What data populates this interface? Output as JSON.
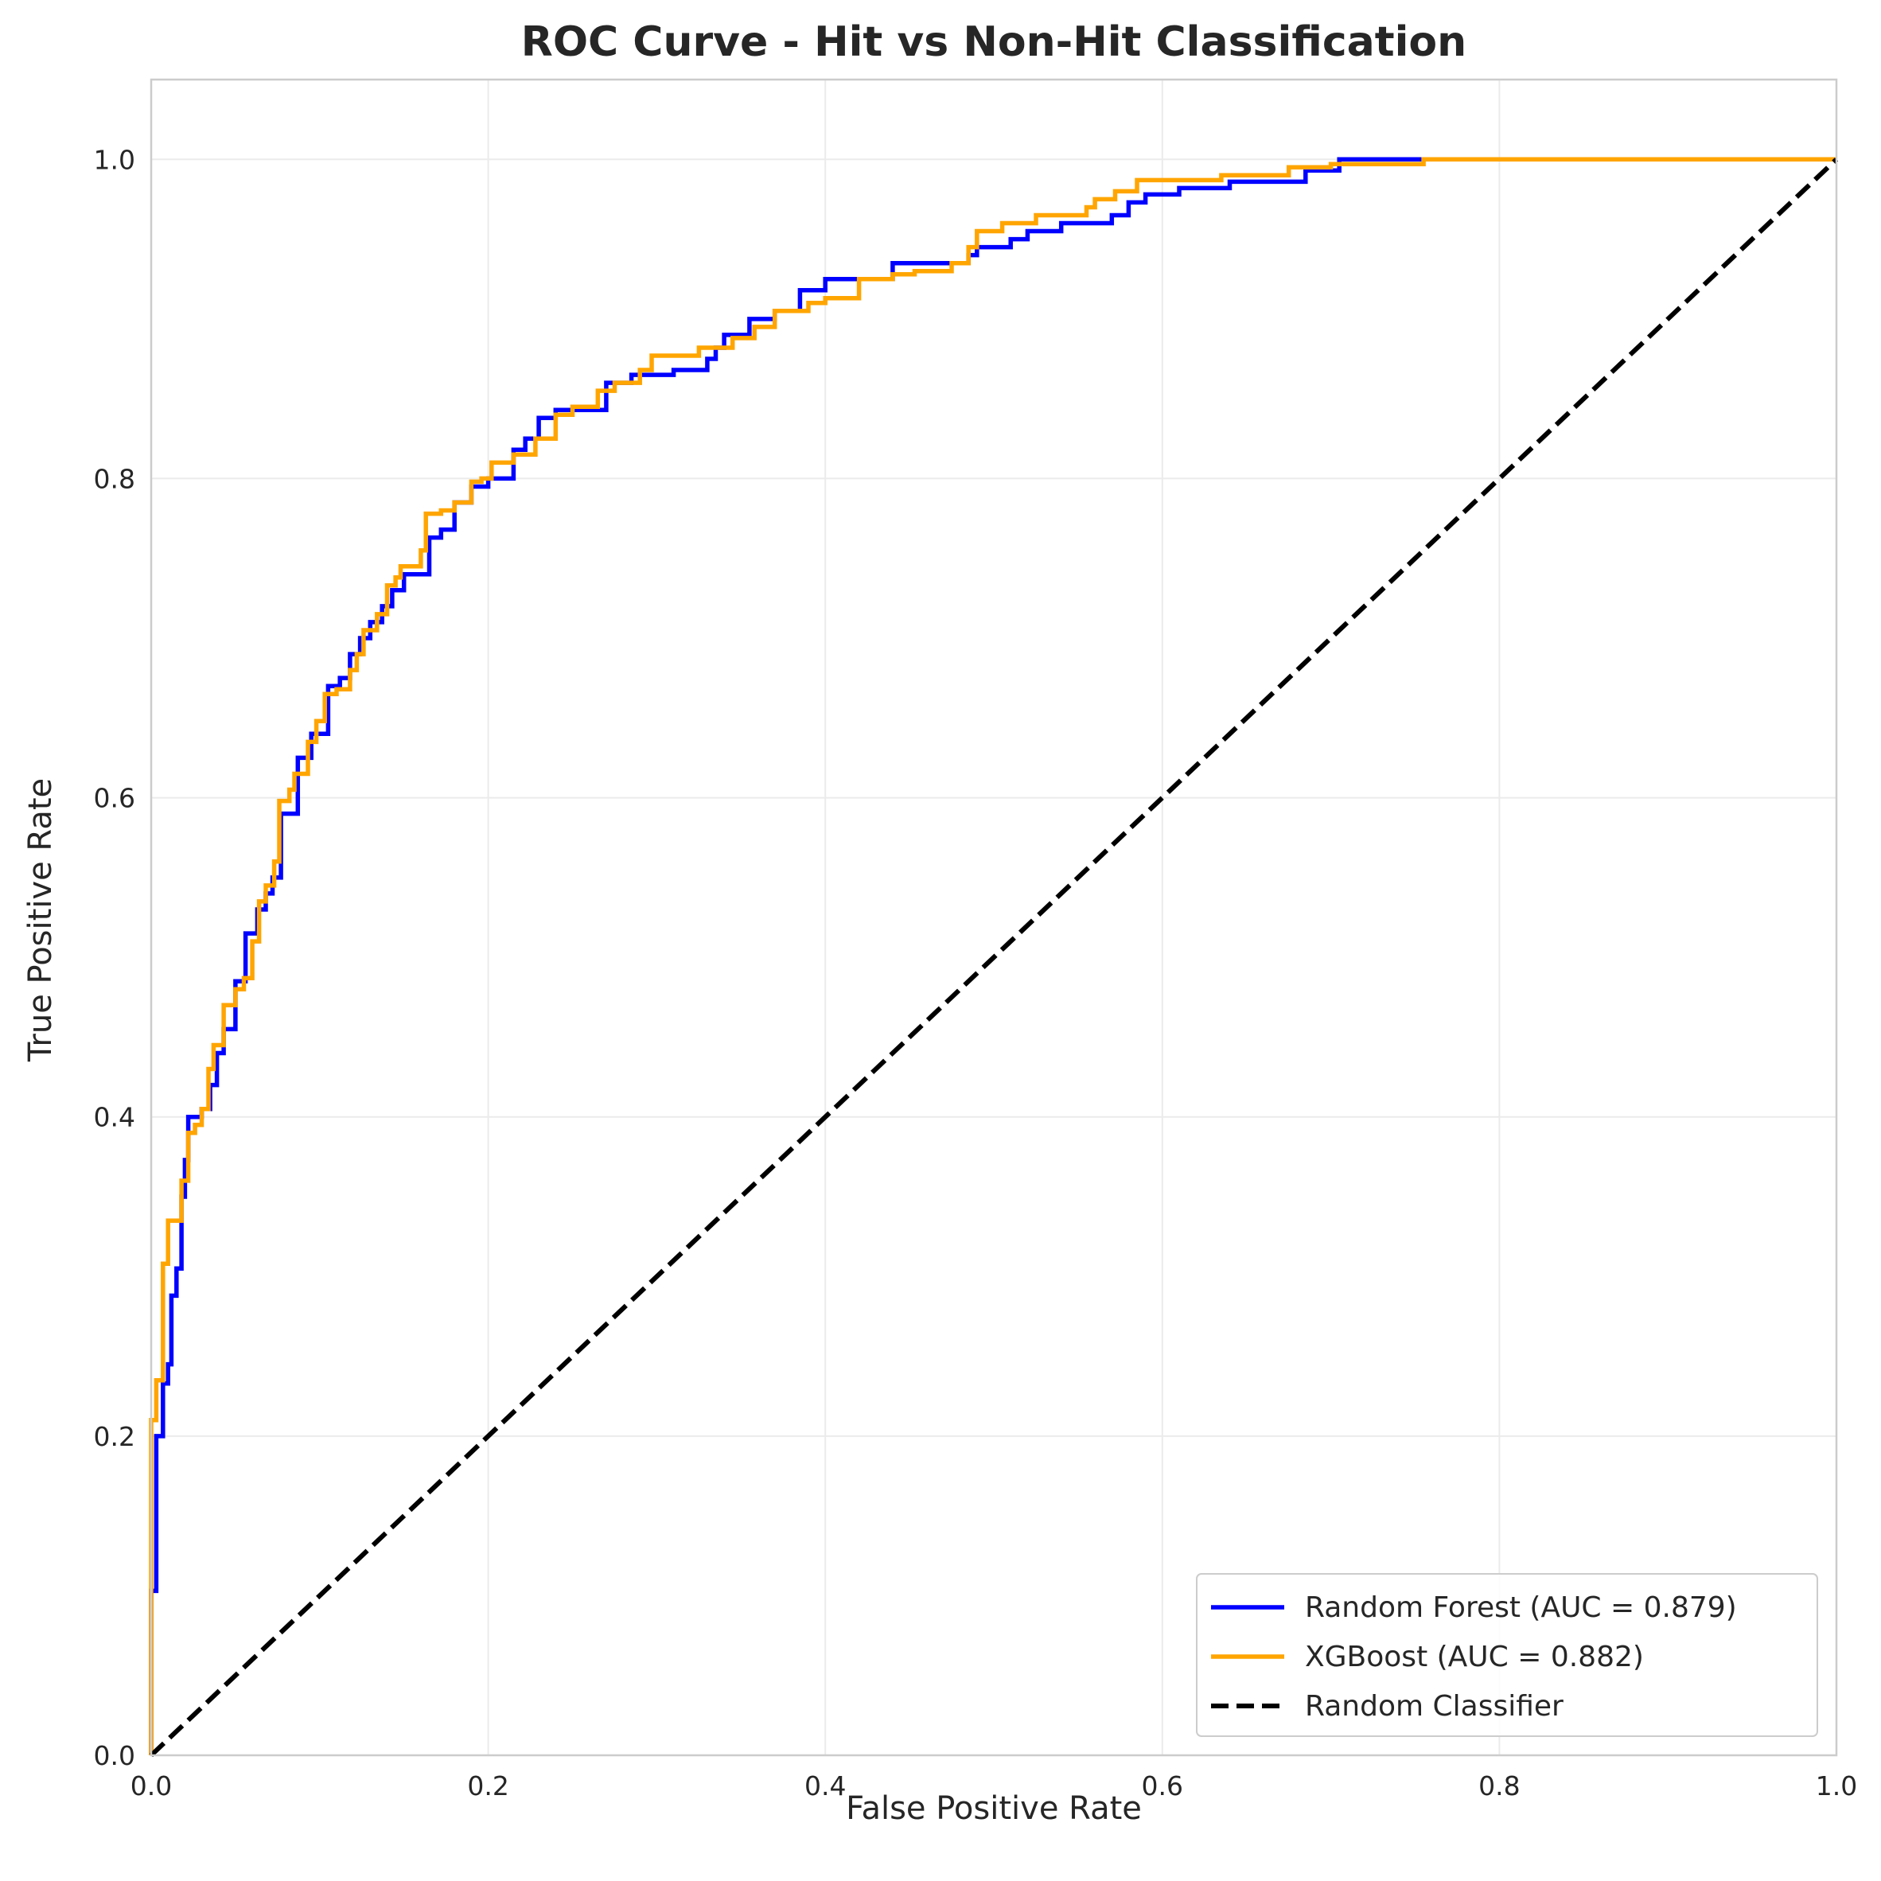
{
  "chart_data": {
    "type": "line",
    "title": "ROC Curve - Hit vs Non-Hit Classification",
    "xlabel": "False Positive Rate",
    "ylabel": "True Positive Rate",
    "xlim": [
      0.0,
      1.0
    ],
    "ylim": [
      0.0,
      1.05
    ],
    "x_ticks": [
      "0.0",
      "0.2",
      "0.4",
      "0.6",
      "0.8",
      "1.0"
    ],
    "y_ticks": [
      "0.0",
      "0.2",
      "0.4",
      "0.6",
      "0.8",
      "1.0"
    ],
    "grid": true,
    "legend_position": "bottom-right",
    "series": [
      {
        "name": "Random Forest (AUC = 0.879)",
        "color": "#0000ff",
        "style": "solid",
        "points": [
          [
            0.0,
            0.0
          ],
          [
            0.0,
            0.103
          ],
          [
            0.003,
            0.103
          ],
          [
            0.003,
            0.2
          ],
          [
            0.007,
            0.2
          ],
          [
            0.007,
            0.233
          ],
          [
            0.01,
            0.233
          ],
          [
            0.01,
            0.245
          ],
          [
            0.012,
            0.245
          ],
          [
            0.012,
            0.288
          ],
          [
            0.015,
            0.288
          ],
          [
            0.015,
            0.305
          ],
          [
            0.018,
            0.305
          ],
          [
            0.018,
            0.35
          ],
          [
            0.02,
            0.35
          ],
          [
            0.02,
            0.373
          ],
          [
            0.022,
            0.373
          ],
          [
            0.022,
            0.4
          ],
          [
            0.03,
            0.4
          ],
          [
            0.03,
            0.405
          ],
          [
            0.035,
            0.405
          ],
          [
            0.035,
            0.42
          ],
          [
            0.039,
            0.42
          ],
          [
            0.039,
            0.44
          ],
          [
            0.043,
            0.44
          ],
          [
            0.043,
            0.455
          ],
          [
            0.05,
            0.455
          ],
          [
            0.05,
            0.485
          ],
          [
            0.056,
            0.485
          ],
          [
            0.056,
            0.515
          ],
          [
            0.063,
            0.515
          ],
          [
            0.063,
            0.53
          ],
          [
            0.068,
            0.53
          ],
          [
            0.068,
            0.54
          ],
          [
            0.072,
            0.54
          ],
          [
            0.072,
            0.55
          ],
          [
            0.077,
            0.55
          ],
          [
            0.077,
            0.59
          ],
          [
            0.087,
            0.59
          ],
          [
            0.087,
            0.625
          ],
          [
            0.095,
            0.625
          ],
          [
            0.095,
            0.64
          ],
          [
            0.105,
            0.64
          ],
          [
            0.105,
            0.67
          ],
          [
            0.112,
            0.67
          ],
          [
            0.112,
            0.675
          ],
          [
            0.118,
            0.675
          ],
          [
            0.118,
            0.69
          ],
          [
            0.124,
            0.69
          ],
          [
            0.124,
            0.7
          ],
          [
            0.13,
            0.7
          ],
          [
            0.13,
            0.71
          ],
          [
            0.137,
            0.71
          ],
          [
            0.137,
            0.72
          ],
          [
            0.143,
            0.72
          ],
          [
            0.143,
            0.73
          ],
          [
            0.15,
            0.73
          ],
          [
            0.15,
            0.74
          ],
          [
            0.165,
            0.74
          ],
          [
            0.165,
            0.763
          ],
          [
            0.172,
            0.763
          ],
          [
            0.172,
            0.768
          ],
          [
            0.18,
            0.768
          ],
          [
            0.18,
            0.785
          ],
          [
            0.19,
            0.785
          ],
          [
            0.19,
            0.795
          ],
          [
            0.2,
            0.795
          ],
          [
            0.2,
            0.8
          ],
          [
            0.215,
            0.8
          ],
          [
            0.215,
            0.818
          ],
          [
            0.222,
            0.818
          ],
          [
            0.222,
            0.825
          ],
          [
            0.23,
            0.825
          ],
          [
            0.23,
            0.838
          ],
          [
            0.24,
            0.838
          ],
          [
            0.24,
            0.843
          ],
          [
            0.27,
            0.843
          ],
          [
            0.27,
            0.86
          ],
          [
            0.285,
            0.86
          ],
          [
            0.285,
            0.865
          ],
          [
            0.31,
            0.865
          ],
          [
            0.31,
            0.868
          ],
          [
            0.33,
            0.868
          ],
          [
            0.33,
            0.875
          ],
          [
            0.335,
            0.875
          ],
          [
            0.335,
            0.882
          ],
          [
            0.34,
            0.882
          ],
          [
            0.34,
            0.89
          ],
          [
            0.355,
            0.89
          ],
          [
            0.355,
            0.9
          ],
          [
            0.37,
            0.9
          ],
          [
            0.37,
            0.905
          ],
          [
            0.385,
            0.905
          ],
          [
            0.385,
            0.918
          ],
          [
            0.4,
            0.918
          ],
          [
            0.4,
            0.925
          ],
          [
            0.44,
            0.925
          ],
          [
            0.44,
            0.935
          ],
          [
            0.485,
            0.935
          ],
          [
            0.485,
            0.94
          ],
          [
            0.49,
            0.94
          ],
          [
            0.49,
            0.945
          ],
          [
            0.51,
            0.945
          ],
          [
            0.51,
            0.95
          ],
          [
            0.52,
            0.95
          ],
          [
            0.52,
            0.955
          ],
          [
            0.54,
            0.955
          ],
          [
            0.54,
            0.96
          ],
          [
            0.57,
            0.96
          ],
          [
            0.57,
            0.965
          ],
          [
            0.58,
            0.965
          ],
          [
            0.58,
            0.973
          ],
          [
            0.59,
            0.973
          ],
          [
            0.59,
            0.978
          ],
          [
            0.61,
            0.978
          ],
          [
            0.61,
            0.982
          ],
          [
            0.64,
            0.982
          ],
          [
            0.64,
            0.986
          ],
          [
            0.685,
            0.986
          ],
          [
            0.685,
            0.993
          ],
          [
            0.705,
            0.993
          ],
          [
            0.705,
            1.0
          ],
          [
            1.0,
            1.0
          ]
        ]
      },
      {
        "name": "XGBoost (AUC = 0.882)",
        "color": "#ffa500",
        "style": "solid",
        "points": [
          [
            0.0,
            0.0
          ],
          [
            0.0,
            0.21
          ],
          [
            0.003,
            0.21
          ],
          [
            0.003,
            0.235
          ],
          [
            0.007,
            0.235
          ],
          [
            0.007,
            0.308
          ],
          [
            0.01,
            0.308
          ],
          [
            0.01,
            0.335
          ],
          [
            0.018,
            0.335
          ],
          [
            0.018,
            0.36
          ],
          [
            0.022,
            0.36
          ],
          [
            0.022,
            0.39
          ],
          [
            0.026,
            0.39
          ],
          [
            0.026,
            0.395
          ],
          [
            0.03,
            0.395
          ],
          [
            0.03,
            0.405
          ],
          [
            0.034,
            0.405
          ],
          [
            0.034,
            0.43
          ],
          [
            0.037,
            0.43
          ],
          [
            0.037,
            0.445
          ],
          [
            0.043,
            0.445
          ],
          [
            0.043,
            0.47
          ],
          [
            0.05,
            0.47
          ],
          [
            0.05,
            0.48
          ],
          [
            0.055,
            0.48
          ],
          [
            0.055,
            0.487
          ],
          [
            0.06,
            0.487
          ],
          [
            0.06,
            0.51
          ],
          [
            0.064,
            0.51
          ],
          [
            0.064,
            0.535
          ],
          [
            0.068,
            0.535
          ],
          [
            0.068,
            0.545
          ],
          [
            0.073,
            0.545
          ],
          [
            0.073,
            0.56
          ],
          [
            0.076,
            0.56
          ],
          [
            0.076,
            0.598
          ],
          [
            0.082,
            0.598
          ],
          [
            0.082,
            0.605
          ],
          [
            0.085,
            0.605
          ],
          [
            0.085,
            0.615
          ],
          [
            0.093,
            0.615
          ],
          [
            0.093,
            0.635
          ],
          [
            0.098,
            0.635
          ],
          [
            0.098,
            0.648
          ],
          [
            0.103,
            0.648
          ],
          [
            0.103,
            0.665
          ],
          [
            0.11,
            0.665
          ],
          [
            0.11,
            0.668
          ],
          [
            0.118,
            0.668
          ],
          [
            0.118,
            0.68
          ],
          [
            0.122,
            0.68
          ],
          [
            0.122,
            0.69
          ],
          [
            0.126,
            0.69
          ],
          [
            0.126,
            0.705
          ],
          [
            0.134,
            0.705
          ],
          [
            0.134,
            0.715
          ],
          [
            0.14,
            0.715
          ],
          [
            0.14,
            0.733
          ],
          [
            0.145,
            0.733
          ],
          [
            0.145,
            0.738
          ],
          [
            0.148,
            0.738
          ],
          [
            0.148,
            0.745
          ],
          [
            0.16,
            0.745
          ],
          [
            0.16,
            0.755
          ],
          [
            0.163,
            0.755
          ],
          [
            0.163,
            0.778
          ],
          [
            0.172,
            0.778
          ],
          [
            0.172,
            0.78
          ],
          [
            0.18,
            0.78
          ],
          [
            0.18,
            0.785
          ],
          [
            0.19,
            0.785
          ],
          [
            0.19,
            0.798
          ],
          [
            0.196,
            0.798
          ],
          [
            0.196,
            0.8
          ],
          [
            0.202,
            0.8
          ],
          [
            0.202,
            0.81
          ],
          [
            0.215,
            0.81
          ],
          [
            0.215,
            0.815
          ],
          [
            0.228,
            0.815
          ],
          [
            0.228,
            0.825
          ],
          [
            0.24,
            0.825
          ],
          [
            0.24,
            0.84
          ],
          [
            0.25,
            0.84
          ],
          [
            0.25,
            0.845
          ],
          [
            0.265,
            0.845
          ],
          [
            0.265,
            0.855
          ],
          [
            0.275,
            0.855
          ],
          [
            0.275,
            0.86
          ],
          [
            0.29,
            0.86
          ],
          [
            0.29,
            0.868
          ],
          [
            0.297,
            0.868
          ],
          [
            0.297,
            0.877
          ],
          [
            0.325,
            0.877
          ],
          [
            0.325,
            0.882
          ],
          [
            0.345,
            0.882
          ],
          [
            0.345,
            0.888
          ],
          [
            0.358,
            0.888
          ],
          [
            0.358,
            0.895
          ],
          [
            0.37,
            0.895
          ],
          [
            0.37,
            0.905
          ],
          [
            0.39,
            0.905
          ],
          [
            0.39,
            0.91
          ],
          [
            0.4,
            0.91
          ],
          [
            0.4,
            0.913
          ],
          [
            0.42,
            0.913
          ],
          [
            0.42,
            0.925
          ],
          [
            0.44,
            0.925
          ],
          [
            0.44,
            0.928
          ],
          [
            0.453,
            0.928
          ],
          [
            0.453,
            0.93
          ],
          [
            0.475,
            0.93
          ],
          [
            0.475,
            0.935
          ],
          [
            0.485,
            0.935
          ],
          [
            0.485,
            0.945
          ],
          [
            0.49,
            0.945
          ],
          [
            0.49,
            0.955
          ],
          [
            0.505,
            0.955
          ],
          [
            0.505,
            0.96
          ],
          [
            0.525,
            0.96
          ],
          [
            0.525,
            0.965
          ],
          [
            0.555,
            0.965
          ],
          [
            0.555,
            0.97
          ],
          [
            0.56,
            0.97
          ],
          [
            0.56,
            0.975
          ],
          [
            0.572,
            0.975
          ],
          [
            0.572,
            0.98
          ],
          [
            0.585,
            0.98
          ],
          [
            0.585,
            0.987
          ],
          [
            0.635,
            0.987
          ],
          [
            0.635,
            0.99
          ],
          [
            0.675,
            0.99
          ],
          [
            0.675,
            0.995
          ],
          [
            0.7,
            0.995
          ],
          [
            0.7,
            0.997
          ],
          [
            0.755,
            0.997
          ],
          [
            0.755,
            1.0
          ],
          [
            1.0,
            1.0
          ]
        ]
      },
      {
        "name": "Random Classifier",
        "color": "#000000",
        "style": "dashed",
        "points": [
          [
            0.0,
            0.0
          ],
          [
            1.0,
            1.0
          ]
        ]
      }
    ]
  }
}
